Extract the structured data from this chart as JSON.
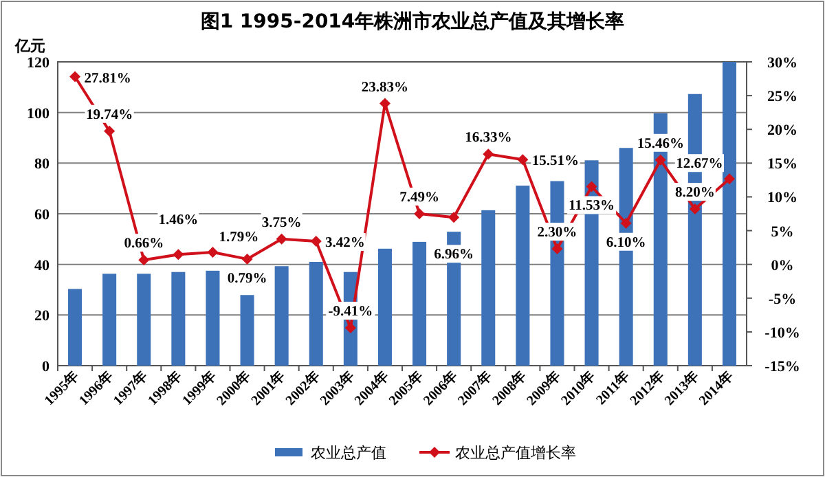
{
  "chart_data": {
    "type": "bar",
    "title": "图1 1995-2014年株洲市农业总产值及其增长率",
    "ylabel": "亿元",
    "categories": [
      "1995年",
      "1996年",
      "1997年",
      "1998年",
      "1999年",
      "2000年",
      "2001年",
      "2002年",
      "2003年",
      "2004年",
      "2005年",
      "2006年",
      "2007年",
      "2008年",
      "2009年",
      "2010年",
      "2011年",
      "2012年",
      "2013年",
      "2014年"
    ],
    "series": [
      {
        "name": "农业总产值",
        "color": "#3d72b8",
        "values": [
          30.3,
          36.3,
          36.3,
          37.0,
          37.5,
          27.9,
          39.3,
          41.0,
          37.0,
          46.2,
          48.9,
          52.9,
          61.4,
          71.1,
          72.9,
          81.1,
          86.0,
          99.7,
          107.3,
          120
        ]
      },
      {
        "name": "农业总产值增长率",
        "type": "line",
        "axis": "y2",
        "color": "#d0101a",
        "marker": "diamond",
        "values": [
          27.81,
          19.74,
          0.66,
          1.46,
          1.79,
          0.79,
          3.75,
          3.42,
          -9.41,
          23.83,
          7.49,
          6.96,
          16.33,
          15.51,
          2.3,
          11.53,
          6.1,
          15.46,
          8.2,
          12.67
        ],
        "value_labels": [
          "27.81%",
          "19.74%",
          "0.66%",
          "1.46%",
          "1.79%",
          "0.79%",
          "3.75%",
          "3.42%",
          "-9.41%",
          "23.83%",
          "7.49%",
          "6.96%",
          "16.33%",
          "15.51%",
          "2.30%",
          "11.53%",
          "6.10%",
          "15.46%",
          "8.20%",
          "12.67%"
        ]
      }
    ],
    "ylim": [
      0,
      120
    ],
    "yticks": [
      0,
      20,
      40,
      60,
      80,
      100,
      120
    ],
    "y2lim": [
      -15,
      30
    ],
    "y2ticks": [
      {
        "value": -15,
        "label": "-15%"
      },
      {
        "value": -10,
        "label": "-10%"
      },
      {
        "value": -5,
        "label": "-5%"
      },
      {
        "value": 0,
        "label": "0%"
      },
      {
        "value": 5,
        "label": "5%"
      },
      {
        "value": 10,
        "label": "10%"
      },
      {
        "value": 15,
        "label": "15%"
      },
      {
        "value": 20,
        "label": "20%"
      },
      {
        "value": 25,
        "label": "25%"
      },
      {
        "value": 30,
        "label": "30%"
      }
    ],
    "grid": "y",
    "legend": "bottom"
  }
}
